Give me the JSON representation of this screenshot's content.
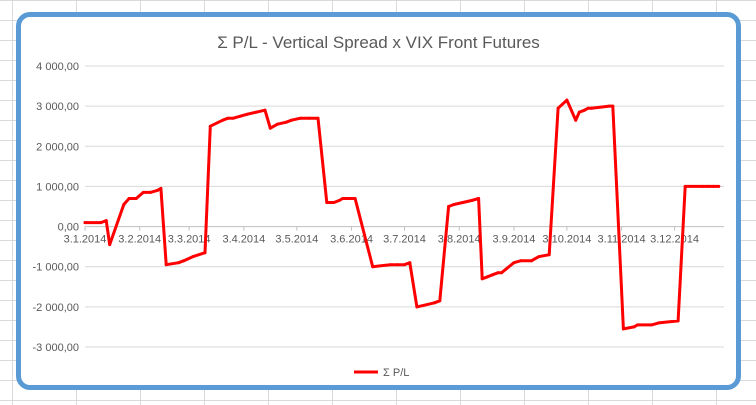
{
  "chart_data": {
    "type": "line",
    "title": "Σ P/L - Vertical Spread x VIX Front Futures",
    "xlabel": "",
    "ylabel": "",
    "ylim": [
      -3000,
      4000
    ],
    "yticks": [
      -3000,
      -2000,
      -1000,
      0,
      1000,
      2000,
      3000,
      4000
    ],
    "ytick_labels": [
      "-3 000,00",
      "-2 000,00",
      "-1 000,00",
      "0,00",
      "1 000,00",
      "2 000,00",
      "3 000,00",
      "4 000,00"
    ],
    "xlim": [
      "2014-01-03",
      "2014-12-31"
    ],
    "xticks": [
      "2014-01-03",
      "2014-02-03",
      "2014-03-03",
      "2014-04-03",
      "2014-05-03",
      "2014-06-03",
      "2014-07-03",
      "2014-08-03",
      "2014-09-03",
      "2014-10-03",
      "2014-11-03",
      "2014-12-03"
    ],
    "xtick_labels": [
      "3.1.2014",
      "3.2.2014",
      "3.3.2014",
      "3.4.2014",
      "3.5.2014",
      "3.6.2014",
      "3.7.2014",
      "3.8.2014",
      "3.9.2014",
      "3.10.2014",
      "3.11.2014",
      "3.12.2014"
    ],
    "grid": true,
    "legend": "bottom",
    "series": [
      {
        "name": "Σ P/L",
        "color": "#ff0000",
        "x": [
          "2014-01-03",
          "2014-01-12",
          "2014-01-15",
          "2014-01-17",
          "2014-01-25",
          "2014-01-28",
          "2014-02-01",
          "2014-02-05",
          "2014-02-09",
          "2014-02-13",
          "2014-02-15",
          "2014-02-18",
          "2014-02-25",
          "2014-02-28",
          "2014-03-05",
          "2014-03-12",
          "2014-03-15",
          "2014-03-22",
          "2014-03-25",
          "2014-03-28",
          "2014-04-01",
          "2014-04-05",
          "2014-04-10",
          "2014-04-15",
          "2014-04-18",
          "2014-04-22",
          "2014-04-27",
          "2014-04-30",
          "2014-05-05",
          "2014-05-10",
          "2014-05-15",
          "2014-05-20",
          "2014-05-24",
          "2014-05-27",
          "2014-05-29",
          "2014-06-05",
          "2014-06-15",
          "2014-06-25",
          "2014-06-29",
          "2014-07-03",
          "2014-07-06",
          "2014-07-10",
          "2014-07-20",
          "2014-07-23",
          "2014-07-28",
          "2014-07-31",
          "2014-08-05",
          "2014-08-10",
          "2014-08-14",
          "2014-08-16",
          "2014-08-19",
          "2014-08-22",
          "2014-08-25",
          "2014-08-27",
          "2014-09-03",
          "2014-09-07",
          "2014-09-13",
          "2014-09-17",
          "2014-09-23",
          "2014-09-28",
          "2014-10-03",
          "2014-10-08",
          "2014-10-10",
          "2014-10-13",
          "2014-10-15",
          "2014-10-17",
          "2014-10-27",
          "2014-10-29",
          "2014-11-04",
          "2014-11-10",
          "2014-11-12",
          "2014-11-20",
          "2014-11-24",
          "2014-12-05",
          "2014-12-09",
          "2014-12-19",
          "2014-12-22",
          "2014-12-25",
          "2014-12-28"
        ],
        "values": [
          100,
          100,
          150,
          -450,
          550,
          700,
          700,
          850,
          850,
          900,
          950,
          -950,
          -900,
          -850,
          -750,
          -650,
          2500,
          2650,
          2700,
          2700,
          2750,
          2800,
          2850,
          2900,
          2450,
          2550,
          2600,
          2650,
          2700,
          2700,
          2700,
          600,
          600,
          650,
          700,
          700,
          -1000,
          -950,
          -950,
          -950,
          -900,
          -2000,
          -1900,
          -1850,
          500,
          550,
          600,
          650,
          700,
          -1300,
          -1250,
          -1200,
          -1150,
          -1150,
          -900,
          -850,
          -850,
          -750,
          -700,
          2950,
          3150,
          2650,
          2850,
          2900,
          2950,
          2950,
          3000,
          3000,
          -2550,
          -2500,
          -2450,
          -2450,
          -2400,
          -2350,
          1000,
          1000,
          1000,
          1000,
          1000
        ]
      }
    ]
  }
}
